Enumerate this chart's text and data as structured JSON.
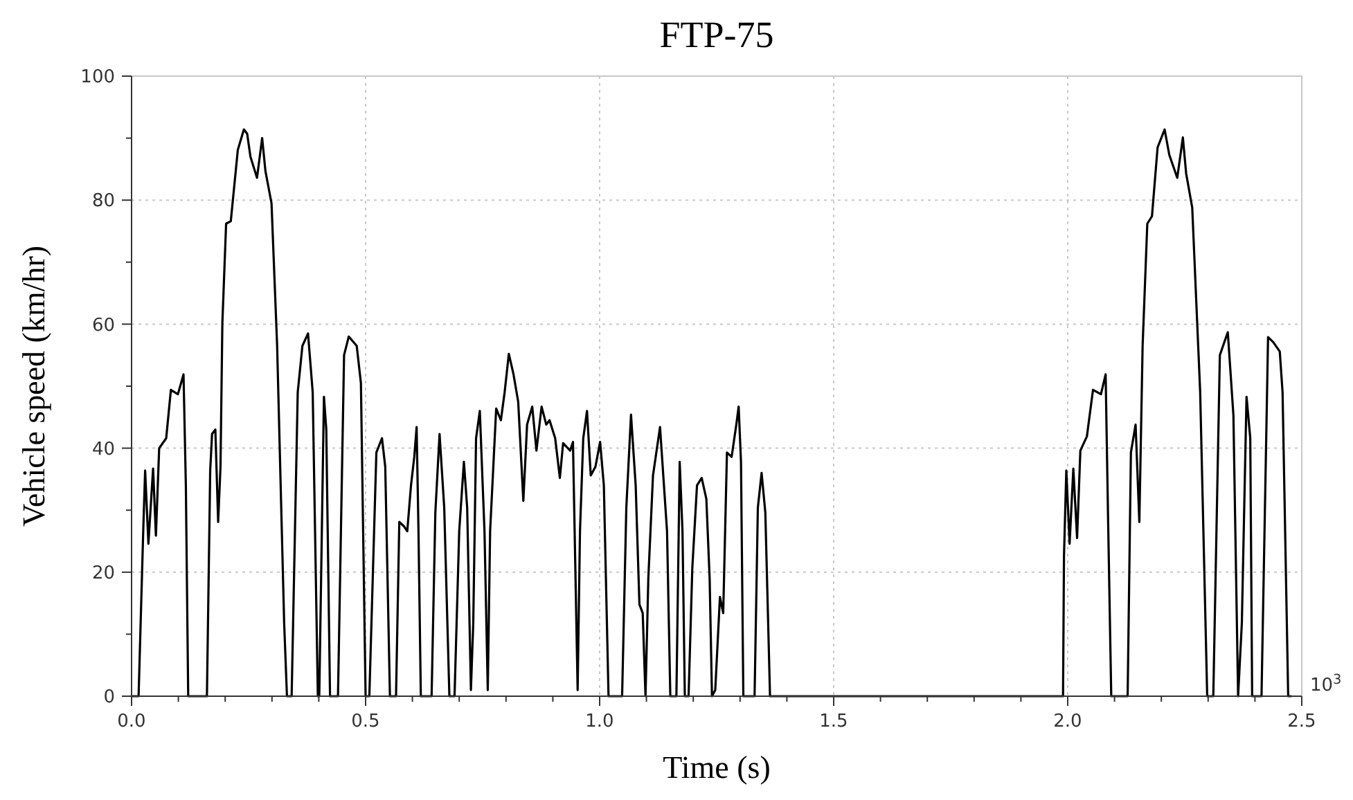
{
  "chart_data": {
    "type": "line",
    "title": "FTP-75",
    "xlabel": "Time (s)",
    "ylabel": "Vehicle speed (km/hr)",
    "annotations": [
      "10$^{3}$"
    ],
    "x": [
      0,
      0.015,
      0.025,
      0.029,
      0.036,
      0.046,
      0.052,
      0.059,
      0.074,
      0.084,
      0.099,
      0.111,
      0.116,
      0.121,
      0.161,
      0.168,
      0.172,
      0.179,
      0.185,
      0.19,
      0.194,
      0.202,
      0.212,
      0.227,
      0.24,
      0.247,
      0.254,
      0.268,
      0.279,
      0.286,
      0.299,
      0.311,
      0.326,
      0.332,
      0.342,
      0.355,
      0.365,
      0.377,
      0.387,
      0.398,
      0.401,
      0.411,
      0.416,
      0.424,
      0.441,
      0.454,
      0.464,
      0.481,
      0.49,
      0.5,
      0.508,
      0.523,
      0.535,
      0.542,
      0.552,
      0.565,
      0.572,
      0.582,
      0.589,
      0.597,
      0.604,
      0.609,
      0.613,
      0.618,
      0.641,
      0.649,
      0.658,
      0.668,
      0.679,
      0.69,
      0.7,
      0.71,
      0.717,
      0.725,
      0.73,
      0.736,
      0.744,
      0.754,
      0.761,
      0.766,
      0.779,
      0.789,
      0.797,
      0.806,
      0.816,
      0.826,
      0.837,
      0.845,
      0.856,
      0.865,
      0.876,
      0.886,
      0.893,
      0.905,
      0.915,
      0.922,
      0.937,
      0.943,
      0.949,
      0.953,
      0.958,
      0.965,
      0.973,
      0.981,
      0.991,
      1.001,
      1.009,
      1.019,
      1.048,
      1.057,
      1.067,
      1.077,
      1.085,
      1.092,
      1.098,
      1.104,
      1.114,
      1.129,
      1.144,
      1.151,
      1.164,
      1.171,
      1.177,
      1.182,
      1.19,
      1.198,
      1.208,
      1.218,
      1.228,
      1.235,
      1.24,
      1.247,
      1.257,
      1.264,
      1.272,
      1.282,
      1.292,
      1.297,
      1.302,
      1.307,
      1.331,
      1.338,
      1.346,
      1.354,
      1.364,
      1.99,
      1.992,
      1.997,
      2.004,
      2.012,
      2.02,
      2.027,
      2.041,
      2.054,
      2.071,
      2.081,
      2.086,
      2.093,
      2.128,
      2.135,
      2.145,
      2.153,
      2.16,
      2.17,
      2.18,
      2.192,
      2.207,
      2.217,
      2.234,
      2.246,
      2.253,
      2.266,
      2.283,
      2.298,
      2.311,
      2.325,
      2.342,
      2.354,
      2.364,
      2.372,
      2.382,
      2.39,
      2.394,
      2.414,
      2.428,
      2.439,
      2.453,
      2.459,
      2.471,
      2.477
    ],
    "series": [
      {
        "color": "#000000",
        "values": [
          0,
          0,
          26.8,
          36.4,
          24.6,
          36.7,
          25.9,
          40,
          41.6,
          49.4,
          48.7,
          51.9,
          34,
          0,
          0,
          36.4,
          42.3,
          43,
          28.1,
          37,
          60.2,
          76.2,
          76.6,
          88.1,
          91.4,
          90.7,
          87,
          83.6,
          90,
          84.7,
          79.5,
          56.5,
          11.8,
          0,
          0,
          49,
          56.5,
          58.5,
          49,
          0,
          0,
          48.3,
          43,
          0,
          0,
          55,
          58,
          56.5,
          50.5,
          0,
          0,
          39.3,
          41.6,
          37,
          0,
          0,
          28.1,
          27.4,
          26.6,
          34,
          38.6,
          43.4,
          26.6,
          0,
          0,
          29.6,
          42.3,
          30.4,
          0,
          0,
          26.6,
          37.8,
          30.4,
          1,
          11.8,
          41.6,
          46,
          26.6,
          1,
          26.6,
          46.4,
          44.5,
          49,
          55.2,
          51.9,
          47.5,
          31.5,
          43.8,
          46.7,
          39.6,
          46.7,
          43.8,
          44.5,
          41.6,
          35.2,
          40.8,
          39.6,
          41,
          17,
          1,
          26.6,
          41.6,
          46,
          35.6,
          37,
          41,
          34,
          0,
          0,
          30.4,
          45.4,
          34,
          14.8,
          13.4,
          0,
          19,
          35.6,
          43.4,
          26.6,
          0,
          0,
          37.8,
          26.6,
          0,
          0,
          20.7,
          34,
          35.2,
          31.8,
          19,
          0,
          1,
          16,
          13.4,
          39.3,
          38.6,
          43.8,
          46.7,
          37.8,
          0,
          0,
          30.4,
          36,
          29.6,
          0,
          0,
          22.5,
          36.4,
          24.6,
          36.7,
          25.5,
          39.6,
          41.9,
          49.4,
          48.7,
          51.9,
          29.6,
          0,
          0,
          39.3,
          43.8,
          28.1,
          56.5,
          76.2,
          77.4,
          88.5,
          91.4,
          87.3,
          83.6,
          90.1,
          84.3,
          78.8,
          49,
          0,
          0,
          55,
          58.7,
          45.3,
          0,
          11.8,
          48.3,
          41.6,
          0,
          0,
          57.9,
          57.1,
          55.6,
          49,
          0,
          0
        ]
      }
    ],
    "xlim": [
      0,
      2.5
    ],
    "ylim": [
      0,
      100
    ],
    "xticks": [
      {
        "value": 0,
        "label": "0.0"
      },
      {
        "value": 0.1,
        "label": null
      },
      {
        "value": 0.2,
        "label": null
      },
      {
        "value": 0.3,
        "label": null
      },
      {
        "value": 0.4,
        "label": null
      },
      {
        "value": 0.5,
        "label": "0.5"
      },
      {
        "value": 0.6,
        "label": null
      },
      {
        "value": 0.7,
        "label": null
      },
      {
        "value": 0.8,
        "label": null
      },
      {
        "value": 0.9,
        "label": null
      },
      {
        "value": 1,
        "label": "1.0"
      },
      {
        "value": 1.1,
        "label": null
      },
      {
        "value": 1.2,
        "label": null
      },
      {
        "value": 1.3,
        "label": null
      },
      {
        "value": 1.4,
        "label": null
      },
      {
        "value": 1.5,
        "label": "1.5"
      },
      {
        "value": 1.6,
        "label": null
      },
      {
        "value": 1.7,
        "label": null
      },
      {
        "value": 1.8,
        "label": null
      },
      {
        "value": 1.9,
        "label": null
      },
      {
        "value": 2,
        "label": "2.0"
      },
      {
        "value": 2.1,
        "label": null
      },
      {
        "value": 2.2,
        "label": null
      },
      {
        "value": 2.3,
        "label": null
      },
      {
        "value": 2.4,
        "label": null
      },
      {
        "value": 2.5,
        "label": "2.5"
      }
    ],
    "yticks": [
      0,
      {
        "value": 10,
        "label": null
      },
      20,
      {
        "value": 30,
        "label": null
      },
      40,
      {
        "value": 50,
        "label": null
      },
      60,
      {
        "value": 70,
        "label": null
      },
      80,
      {
        "value": 90,
        "label": null
      },
      100
    ],
    "grid": true,
    "marker": "none",
    "line_style": "solid"
  }
}
